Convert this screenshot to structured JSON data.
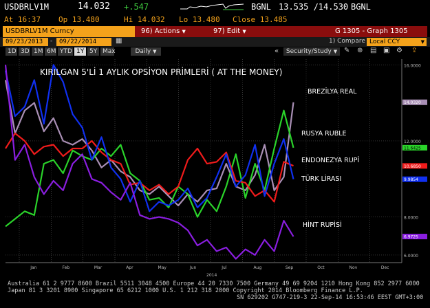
{
  "ticker_bar": {
    "ticker": "USDBRLV1M",
    "last": "14.032",
    "change": "+.547",
    "compare_label": "BGNL",
    "range": "13.535 /14.530",
    "range_label": "BGNL",
    "at": "At 16:37",
    "op": "Op 13.480",
    "hi": "Hi 14.032",
    "lo": "Lo 13.480",
    "close": "Close 13.485"
  },
  "menu_bar": {
    "security": "USDBRLV1M Curncy",
    "actions": "96) Actions",
    "edit": "97) Edit",
    "graph": "G 1305 - Graph 1305"
  },
  "date_bar": {
    "start": "09/23/2013",
    "end": "09/22/2014",
    "compare": "1) Compare",
    "currency": "Local CCY"
  },
  "period_bar": {
    "buttons": [
      "1D",
      "3D",
      "1M",
      "6M",
      "YTD",
      "1Y",
      "5Y",
      "Max"
    ],
    "selected": "1Y",
    "frequency": "Daily",
    "security_study": "Security/Study"
  },
  "colors": {
    "brazil": "#a98fb5",
    "russia": "#2ad32a",
    "indonesia": "#f01b1b",
    "turkey": "#1030f0",
    "india": "#8a1ee0"
  },
  "chart_data": {
    "type": "line",
    "title": "KIRILGAN 5'Lİ 1 AYLIK OPSİYON PRİMLERİ ( AT THE MONEY)",
    "x_tick_labels": [
      "Jan",
      "Feb",
      "Mar",
      "Apr",
      "May",
      "Jun",
      "Jul",
      "Aug",
      "Sep",
      "Oct",
      "Nov",
      "Dec"
    ],
    "x_year_label": "2014",
    "y_tick_labels": [
      "16.0000",
      "12.0000",
      "8.0000",
      "6.0000"
    ],
    "ylim": [
      5.6,
      16.3
    ],
    "value_badges": [
      {
        "series": "BREZİLYA REAL",
        "value": "14.0320"
      },
      {
        "series": "RUSYA RUBLE",
        "value": "11.6425"
      },
      {
        "series": "ENDONEZYA RUPİ",
        "value": "10.6850"
      },
      {
        "series": "TÜRK LİRASI",
        "value": "9.9854"
      },
      {
        "series": "HİNT RUPİSİ",
        "value": "6.9725"
      }
    ],
    "series": [
      {
        "name": "BREZİLYA REAL",
        "color_key": "brazil",
        "values": [
          15.2,
          12.4,
          13.6,
          14.0,
          12.5,
          13.2,
          12.0,
          11.8,
          12.1,
          11.5,
          10.6,
          11.0,
          10.4,
          10.1,
          9.4,
          9.2,
          9.6,
          9.1,
          8.6,
          9.2,
          8.8,
          9.4,
          9.5,
          10.8,
          9.6,
          9.4,
          10.2,
          11.8,
          9.4,
          10.1,
          14.03
        ]
      },
      {
        "name": "RUSYA RUBLE",
        "color_key": "russia",
        "values": [
          7.5,
          7.9,
          8.3,
          8.1,
          10.8,
          11.0,
          10.3,
          11.5,
          11.2,
          11.0,
          11.6,
          11.2,
          11.8,
          10.3,
          9.9,
          8.9,
          9.0,
          8.5,
          9.6,
          9.2,
          8.0,
          8.9,
          8.3,
          9.6,
          11.3,
          9.0,
          10.8,
          9.4,
          11.6,
          13.6,
          11.64
        ]
      },
      {
        "name": "ENDONEZYA RUPİ",
        "color_key": "indonesia",
        "values": [
          11.6,
          12.4,
          12.0,
          11.3,
          11.7,
          11.8,
          11.2,
          11.6,
          11.6,
          12.0,
          11.4,
          11.0,
          10.8,
          9.7,
          9.8,
          9.4,
          9.7,
          9.2,
          9.6,
          11.0,
          11.6,
          10.8,
          10.9,
          11.4,
          9.9,
          9.8,
          9.1,
          9.4,
          8.8,
          10.9,
          10.69
        ]
      },
      {
        "name": "TÜRK LİRASI",
        "color_key": "turkey",
        "values": [
          15.7,
          13.3,
          13.8,
          15.2,
          12.9,
          16.0,
          15.1,
          13.4,
          12.7,
          11.0,
          12.2,
          10.6,
          10.0,
          8.8,
          9.9,
          8.3,
          8.8,
          8.6,
          8.9,
          9.5,
          8.5,
          9.0,
          10.1,
          11.3,
          9.6,
          10.2,
          11.8,
          9.1,
          10.8,
          12.1,
          9.99
        ]
      },
      {
        "name": "HİNT RUPİSİ",
        "color_key": "india",
        "values": [
          16.0,
          11.0,
          11.8,
          10.1,
          9.2,
          9.9,
          9.4,
          10.8,
          11.3,
          10.0,
          9.8,
          9.3,
          8.9,
          9.8,
          8.1,
          7.9,
          8.0,
          7.9,
          7.7,
          7.3,
          6.5,
          6.8,
          6.2,
          6.4,
          5.8,
          6.3,
          6.0,
          6.8,
          6.2,
          7.8,
          6.97
        ]
      }
    ]
  },
  "footer": {
    "line1": "Australia 61 2 9777 8600 Brazil 5511 3048 4500 Europe 44 20 7330 7500 Germany 49 69 9204 1210 Hong Kong 852 2977 6000",
    "line2": "Japan 81 3 3201 8900         Singapore 65 6212 1000         U.S. 1 212 318 2000         Copyright 2014 Bloomberg Finance L.P.",
    "line3": "SN 629202 G747-219-3 22-Sep-14 16:53:46 EEST GMT+3:00"
  }
}
